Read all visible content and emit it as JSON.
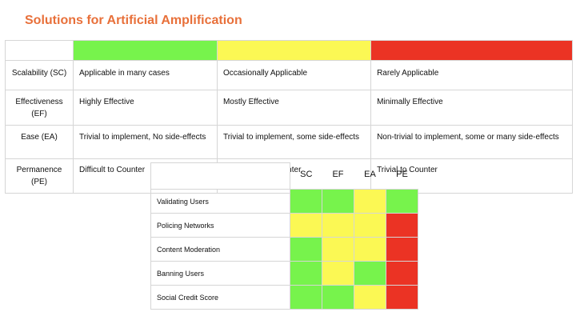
{
  "title": "Solutions for Artificial Amplification",
  "colors": {
    "high": "#77f34c",
    "medium": "#fbf854",
    "low": "#eb3324",
    "title": "#e8703a"
  },
  "legend": {
    "rows": [
      {
        "name": "Scalability (SC)",
        "high": "Applicable in many cases",
        "medium": "Occasionally Applicable",
        "low": "Rarely Applicable"
      },
      {
        "name": "Effectiveness (EF)",
        "high": "Highly Effective",
        "medium": "Mostly Effective",
        "low": "Minimally Effective"
      },
      {
        "name": "Ease (EA)",
        "high": "Trivial to implement, No side-effects",
        "medium": "Trivial to implement, some side-effects",
        "low": "Non-trivial to implement, some or many side-effects"
      },
      {
        "name": "Permanence (PE)",
        "high": "Difficult to Counter",
        "medium": "Non-Trivial to Counter",
        "low": "Trivial to Counter"
      }
    ]
  },
  "scores": {
    "columns": [
      "SC",
      "EF",
      "EA",
      "PE"
    ],
    "rows": [
      {
        "label": "Validating Users",
        "ratings": [
          "high",
          "high",
          "medium",
          "high"
        ]
      },
      {
        "label": "Policing Networks",
        "ratings": [
          "medium",
          "medium",
          "medium",
          "low"
        ]
      },
      {
        "label": "Content Moderation",
        "ratings": [
          "high",
          "medium",
          "medium",
          "low"
        ]
      },
      {
        "label": "Banning Users",
        "ratings": [
          "high",
          "medium",
          "high",
          "low"
        ]
      },
      {
        "label": "Social Credit Score",
        "ratings": [
          "high",
          "high",
          "medium",
          "low"
        ]
      }
    ]
  }
}
